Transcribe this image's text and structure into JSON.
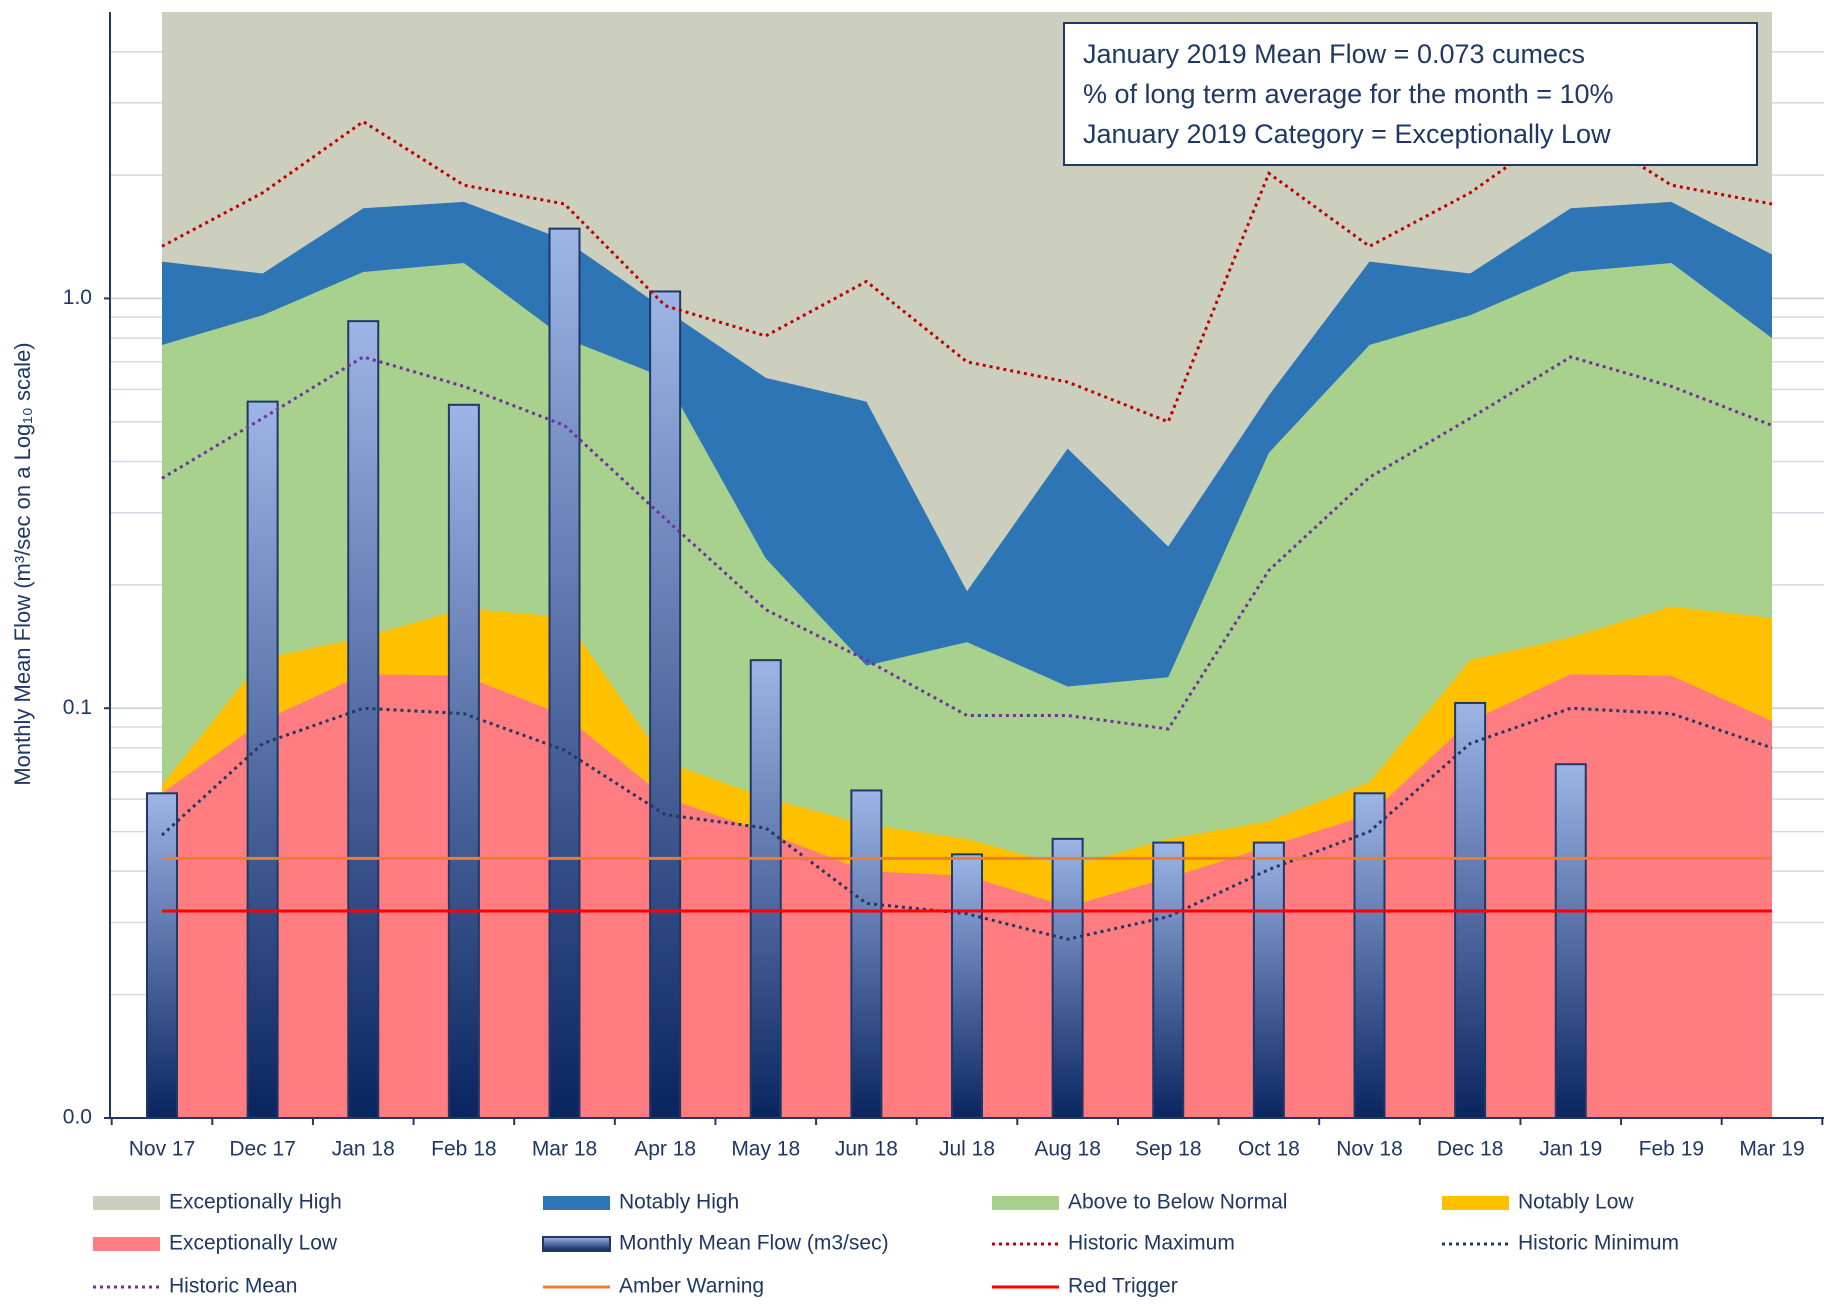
{
  "chart_data": {
    "type": "combo",
    "y_label": "Monthly Mean Flow (m³/sec on a Log₁₀ scale)",
    "annotation": [
      "January 2019 Mean Flow = 0.073 cumecs",
      "% of long term average for the month = 10%",
      "January 2019 Category = Exceptionally Low"
    ],
    "categories": [
      "Nov 17",
      "Dec 17",
      "Jan 18",
      "Feb 18",
      "Mar 18",
      "Apr 18",
      "May 18",
      "Jun 18",
      "Jul 18",
      "Aug 18",
      "Sep 18",
      "Oct 18",
      "Nov 18",
      "Dec 18",
      "Jan 19",
      "Feb 19",
      "Mar 19"
    ],
    "log_y": true,
    "minor_grid": true,
    "ylim": [
      0.01,
      5
    ],
    "yticks": [
      {
        "value": 0.01,
        "label": "0.0"
      },
      {
        "value": 0.1,
        "label": "0.1"
      },
      {
        "value": 1,
        "label": "1.0"
      }
    ],
    "legend": "bottom",
    "series": [
      {
        "name": "Exceptionally High",
        "kind": "band",
        "color": "#cccfbd"
      },
      {
        "name": "Notably High",
        "kind": "band",
        "color": "#2e75b6",
        "values": [
          1.23,
          1.15,
          1.66,
          1.72,
          1.39,
          0.94,
          0.64,
          0.56,
          0.193,
          0.43,
          0.248,
          0.58,
          1.23,
          1.15,
          1.66,
          1.72,
          1.28
        ]
      },
      {
        "name": "Above to Below Normal",
        "kind": "band",
        "color": "#a9d18e",
        "values": [
          0.77,
          0.91,
          1.16,
          1.22,
          0.8,
          0.64,
          0.232,
          0.127,
          0.145,
          0.113,
          0.119,
          0.42,
          0.77,
          0.91,
          1.16,
          1.22,
          0.8
        ]
      },
      {
        "name": "Notably Low",
        "kind": "band",
        "color": "#ffc000",
        "values": [
          0.065,
          0.132,
          0.149,
          0.175,
          0.167,
          0.074,
          0.0605,
          0.052,
          0.048,
          0.041,
          0.048,
          0.053,
          0.066,
          0.131,
          0.149,
          0.177,
          0.166
        ]
      },
      {
        "name": "Exceptionally Low",
        "kind": "band",
        "color": "#ff7c80",
        "values": [
          0.062,
          0.093,
          0.121,
          0.12,
          0.096,
          0.0605,
          0.0498,
          0.04,
          0.039,
          0.0328,
          0.0385,
          0.046,
          0.055,
          0.093,
          0.121,
          0.12,
          0.093
        ]
      },
      {
        "name": "Monthly Mean Flow (m3/sec)",
        "kind": "bar",
        "color": "#1f3864",
        "colors": [
          "#9db5e6",
          "#0a2460"
        ],
        "values": [
          0.062,
          0.56,
          0.88,
          0.55,
          1.48,
          1.04,
          0.131,
          0.063,
          0.044,
          0.048,
          0.047,
          0.047,
          0.062,
          0.103,
          0.073,
          null,
          null
        ]
      },
      {
        "name": "Historic Maximum",
        "kind": "dotted",
        "color": "#c00000",
        "values": [
          1.34,
          1.81,
          2.7,
          1.89,
          1.7,
          0.96,
          0.81,
          1.1,
          0.7,
          0.625,
          0.5,
          2.02,
          1.34,
          1.81,
          2.7,
          1.89,
          1.7
        ]
      },
      {
        "name": "Historic Minimum",
        "kind": "dotted",
        "color": "#1f3864",
        "values": [
          0.049,
          0.082,
          0.1,
          0.097,
          0.079,
          0.055,
          0.051,
          0.0334,
          0.0315,
          0.0273,
          0.031,
          0.0404,
          0.05,
          0.082,
          0.1,
          0.097,
          0.08
        ]
      },
      {
        "name": "Historic Mean",
        "kind": "dotted",
        "color": "#7030a0",
        "values": [
          0.364,
          0.51,
          0.72,
          0.61,
          0.49,
          0.29,
          0.174,
          0.131,
          0.096,
          0.096,
          0.089,
          0.217,
          0.366,
          0.51,
          0.72,
          0.61,
          0.49
        ]
      },
      {
        "name": "Amber Warning",
        "kind": "flat",
        "color": "#ed7d31",
        "value": 0.043
      },
      {
        "name": "Red Trigger",
        "kind": "flat",
        "color": "#ff0000",
        "value": 0.032
      }
    ]
  }
}
